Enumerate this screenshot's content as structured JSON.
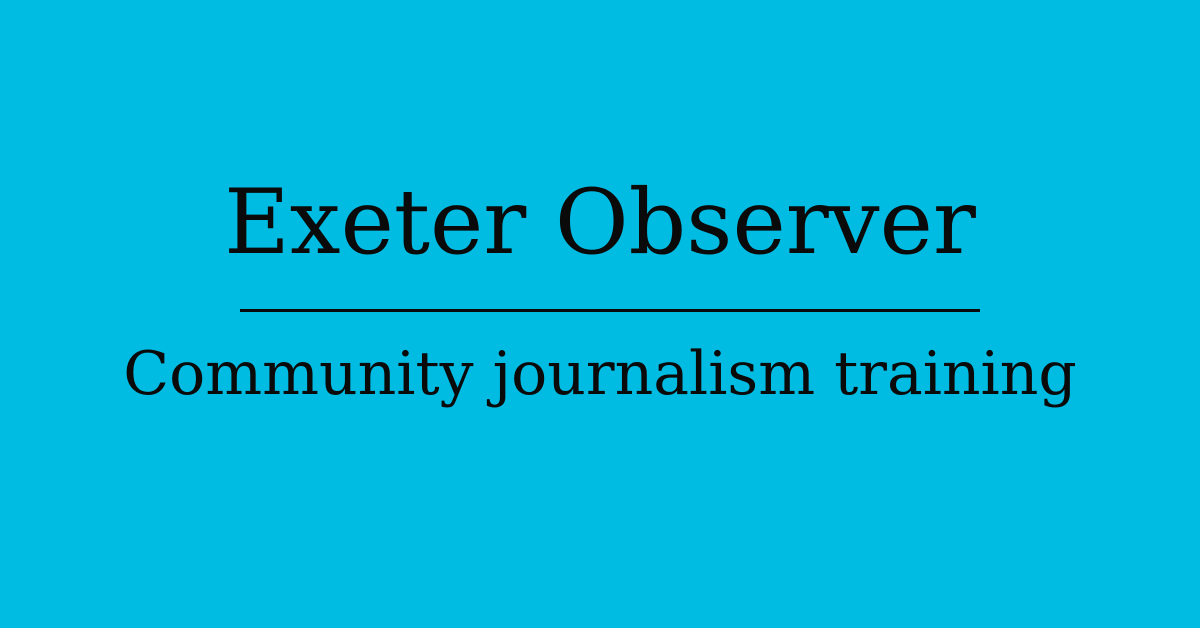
{
  "banner": {
    "title": "Exeter Observer",
    "subtitle": "Community journalism training",
    "background_color": "#00bce3",
    "text_color": "#0a0a0a"
  }
}
